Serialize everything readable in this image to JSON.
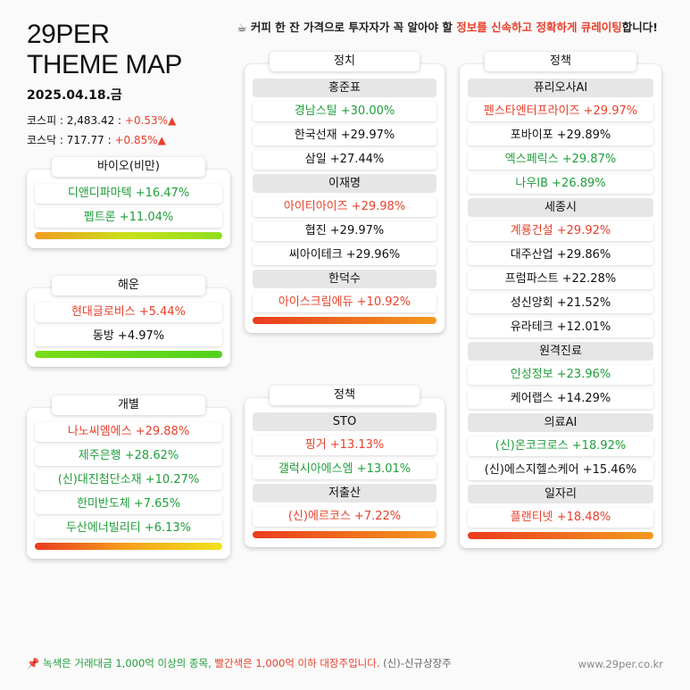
{
  "header": {
    "brand_line1": "29PER",
    "brand_line2": "THEME MAP",
    "date": "2025.04.18.금",
    "kospi": "코스피 : 2,483.42 : ",
    "kospi_change": "+0.53%▲",
    "kosdaq": "코스닥 : 717.77 : ",
    "kosdaq_change": "+0.85%▲",
    "notice_prefix": "☕ 커피 한 잔 가격으로 투자자가 꼭 알아야 할 ",
    "notice_highlight": "정보를 신속하고 정확하게 큐레이팅",
    "notice_suffix": "합니다!"
  },
  "colors": {
    "green": "#1f9e3a",
    "red": "#e8402a"
  },
  "cards": {
    "bio": {
      "title": "바이오(비만)",
      "items": [
        "디앤디파마텍 +16.47%",
        "펩트론 +11.04%"
      ]
    },
    "shipping": {
      "title": "해운",
      "items": [
        "현대글로비스 +5.44%",
        "동방 +4.97%"
      ]
    },
    "individual": {
      "title": "개별",
      "items": [
        "나노씨엠에스 +29.88%",
        "제주은행 +28.62%",
        "(신)대진첨단소재 +10.27%",
        "한미반도체 +7.65%",
        "두산에너빌리티 +6.13%"
      ]
    },
    "politics": {
      "title": "정치",
      "groups": [
        {
          "name": "홍준표",
          "items": [
            "경남스틸 +30.00%",
            "한국선재 +29.97%",
            "삼일 +27.44%"
          ]
        },
        {
          "name": "이재명",
          "items": [
            "아이티아이즈 +29.98%",
            "협진 +29.97%",
            "씨아이테크 +29.96%"
          ]
        },
        {
          "name": "한덕수",
          "items": [
            "아이스크림에듀 +10.92%"
          ]
        }
      ]
    },
    "policy_mid": {
      "title": "정책",
      "groups": [
        {
          "name": "STO",
          "items": [
            "핑거 +13.13%",
            "갤럭시아에스엠 +13.01%"
          ]
        },
        {
          "name": "저출산",
          "items": [
            "(신)에르코스 +7.22%"
          ]
        }
      ]
    },
    "policy_right": {
      "title": "정책",
      "groups": [
        {
          "name": "퓨리오사AI",
          "items": [
            "펜스타엔터프라이즈 +29.97%",
            "포바이포 +29.89%",
            "엑스페릭스 +29.87%",
            "나우IB +26.89%"
          ]
        },
        {
          "name": "세종시",
          "items": [
            "계룡건설 +29.92%",
            "대주산업 +29.86%",
            "프럼파스트 +22.28%",
            "성신양회 +21.52%",
            "유라테크 +12.01%"
          ]
        },
        {
          "name": "원격진료",
          "items": [
            "인성정보 +23.96%",
            "케어랩스 +14.29%"
          ]
        },
        {
          "name": "의료AI",
          "items": [
            "(신)온코크로스 +18.92%",
            "(신)에스지헬스케어 +15.46%"
          ]
        },
        {
          "name": "일자리",
          "items": [
            "플랜티넷 +18.48%"
          ]
        }
      ]
    }
  },
  "footer": {
    "pin_icon": "pin-icon",
    "note_green": "녹색은 거래대금 1,000억 이상의 종목, ",
    "note_red": "빨간색은 1,000억 이하 대장주입니다.",
    "note_tail": " (신)-신규상장주",
    "site": "www.29per.co.kr"
  }
}
